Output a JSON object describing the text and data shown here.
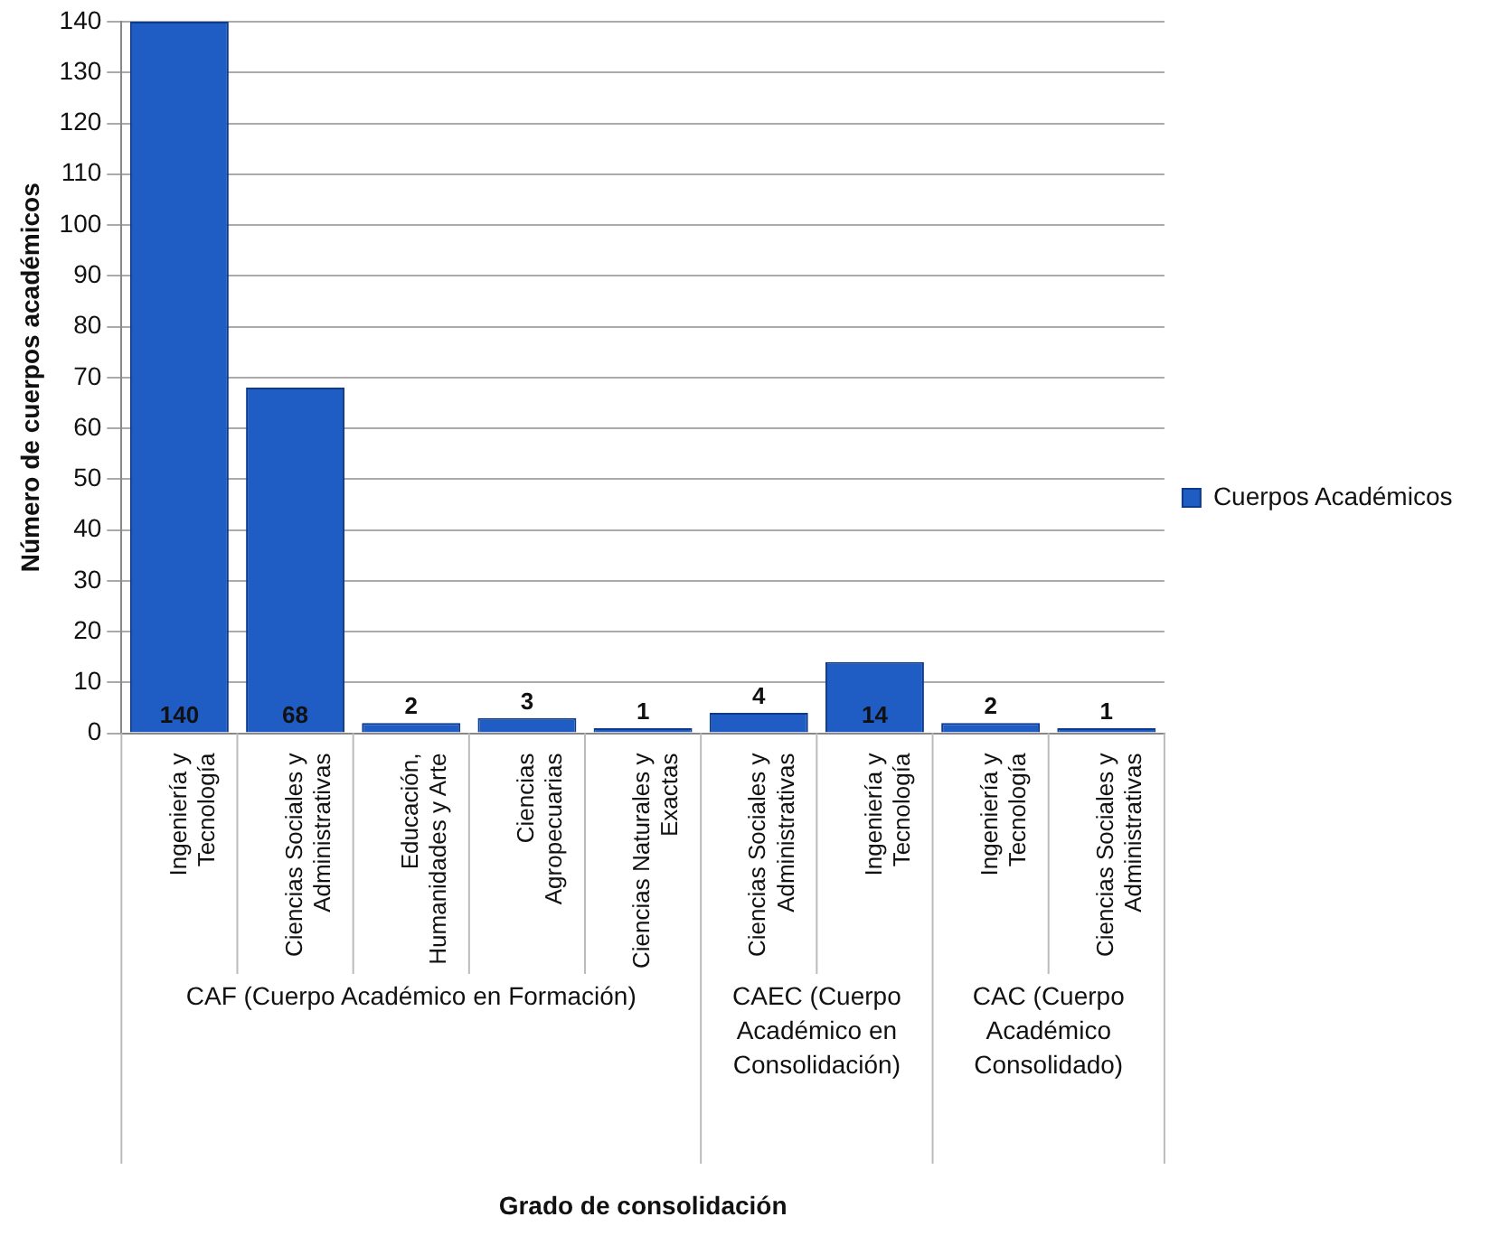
{
  "chart_data": {
    "type": "bar",
    "ylabel": "Número de cuerpos académicos",
    "categories": [
      "Ingeniería y Tecnología",
      "Ciencias Sociales y Administrativas",
      "Educación,  Humanidades y Arte",
      "Ciencias Agropecuarias",
      "Ciencias Naturales y Exactas",
      "Ciencias Sociales y Administrativas",
      "Ingeniería y Tecnología",
      "Ingeniería y Tecnología",
      "Ciencias Sociales y Administrativas"
    ],
    "series": [
      {
        "name": "Cuerpos Académicos",
        "color": "#1f5cc4",
        "values": [
          140,
          68,
          2,
          3,
          1,
          4,
          14,
          2,
          1
        ]
      }
    ],
    "ylim": [
      0,
      140
    ],
    "yticks": [
      0,
      10,
      20,
      30,
      40,
      50,
      60,
      70,
      80,
      90,
      100,
      110,
      120,
      130,
      140
    ],
    "grid": "y",
    "legend": "right",
    "data_labels": true,
    "annotations": [
      "CAF (Cuerpo Académico en Formación)",
      "CAEC (Cuerpo Académico en Consolidación)",
      "CAC (Cuerpo Académico Consolidado)",
      "Grado de consolidación"
    ]
  }
}
